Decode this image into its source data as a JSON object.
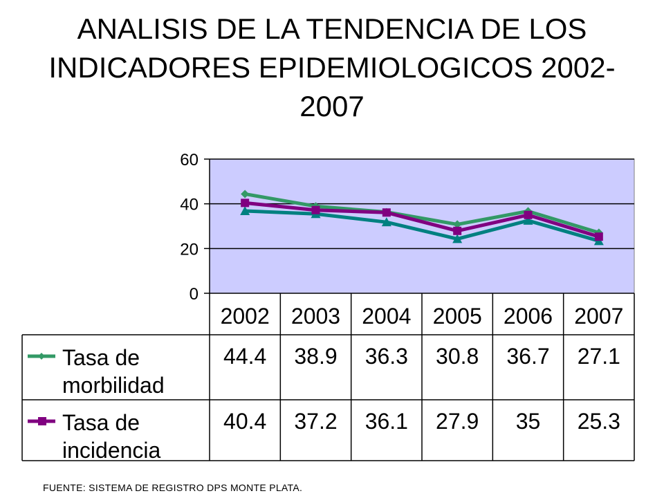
{
  "title_lines": [
    "ANALISIS DE LA TENDENCIA DE LOS",
    "INDICADORES EPIDEMIOLOGICOS 2002-",
    "2007"
  ],
  "source": "FUENTE: SISTEMA DE REGISTRO DPS MONTE PLATA.",
  "chart_data": {
    "type": "line",
    "title": "ANALISIS DE LA TENDENCIA DE LOS INDICADORES EPIDEMIOLOGICOS 2002-2007",
    "categories": [
      "2002",
      "2003",
      "2004",
      "2005",
      "2006",
      "2007"
    ],
    "ylim": [
      0,
      60
    ],
    "yticks": [
      "0",
      "20",
      "40",
      "60"
    ],
    "grid": true,
    "plot_background": "#ccccff",
    "legend": "data-table",
    "series": [
      {
        "name_lines": [
          "Tasa de",
          "morbilidad"
        ],
        "values": [
          44.4,
          38.9,
          36.3,
          30.8,
          36.7,
          27.1
        ],
        "labels": [
          "44.4",
          "38.9",
          "36.3",
          "30.8",
          "36.7",
          "27.1"
        ],
        "color": "#339966",
        "marker": "diamond",
        "in_table": true
      },
      {
        "name_lines": [
          "Tasa de",
          "incidencia"
        ],
        "values": [
          40.4,
          37.2,
          36.1,
          27.9,
          35,
          25.3
        ],
        "labels": [
          "40.4",
          "37.2",
          "36.1",
          "27.9",
          "35",
          "25.3"
        ],
        "color": "#800080",
        "marker": "square",
        "in_table": true
      },
      {
        "values": [
          36.8,
          35.5,
          31.8,
          24.3,
          32.5,
          23.4
        ],
        "color": "#008080",
        "marker": "triangle",
        "in_table": false
      }
    ]
  }
}
